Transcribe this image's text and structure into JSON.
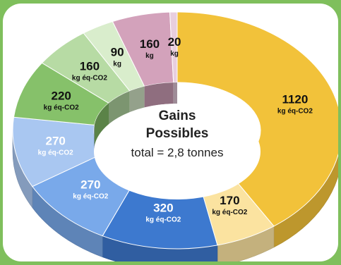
{
  "chart_data": {
    "type": "pie",
    "style": "3d-donut",
    "center_title_line1": "Gains",
    "center_title_line2": "Possibles",
    "center_subtitle": "total = 2,8 tonnes",
    "slices": [
      {
        "value": 1120,
        "value_label": "1120",
        "unit_label": "kg éq-CO2",
        "color": "#f2c23a",
        "label_color": "#111111"
      },
      {
        "value": 170,
        "value_label": "170",
        "unit_label": "kg éq-CO2",
        "color": "#fbe3a0",
        "label_color": "#111111"
      },
      {
        "value": 320,
        "value_label": "320",
        "unit_label": "kg éq-CO2",
        "color": "#3d79cf",
        "label_color": "#ffffff"
      },
      {
        "value": 270,
        "value_label": "270",
        "unit_label": "kg éq-CO2",
        "color": "#79a9ea",
        "label_color": "#ffffff"
      },
      {
        "value": 270,
        "value_label": "270",
        "unit_label": "kg éq-CO2",
        "color": "#a9c7f1",
        "label_color": "#ffffff"
      },
      {
        "value": 220,
        "value_label": "220",
        "unit_label": "kg éq-CO2",
        "color": "#86c16a",
        "label_color": "#111111"
      },
      {
        "value": 160,
        "value_label": "160",
        "unit_label": "kg éq-CO2",
        "color": "#b7dba4",
        "label_color": "#111111"
      },
      {
        "value": 90,
        "value_label": "90",
        "unit_label": "kg",
        "color": "#d9edcc",
        "label_color": "#111111"
      },
      {
        "value": 160,
        "value_label": "160",
        "unit_label": "kg",
        "color": "#d3a2bb",
        "label_color": "#111111"
      },
      {
        "value": 20,
        "value_label": "20",
        "unit_label": "kg",
        "color": "#e8cede",
        "label_color": "#111111"
      }
    ]
  }
}
